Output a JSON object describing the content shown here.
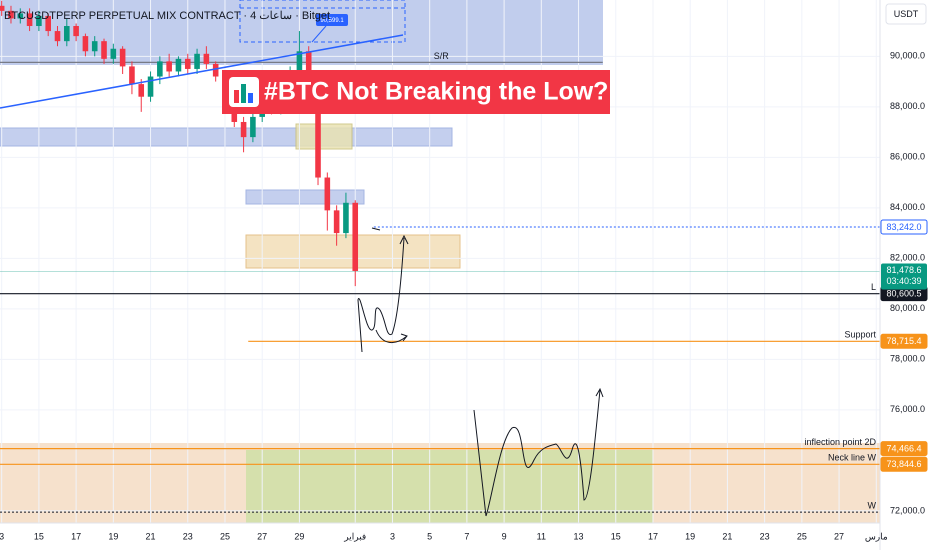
{
  "chart_data": {
    "type": "candlestick",
    "title": "#BTC Not Breaking the Low?",
    "symbol": "BTCUSDTPERP PERPETUAL MIX CONTRACT · 4 ساعات · Bitget",
    "currency": "USDT",
    "target_callout": "90,599.1",
    "up_color": "#089981",
    "down_color": "#f23645",
    "x": [
      -4,
      -3.5,
      -3,
      -2.5,
      -2,
      -1.5,
      -1,
      -0.5,
      0,
      0.5,
      1,
      1.5,
      2,
      2.5,
      3,
      3.5,
      4,
      4.5,
      5,
      5.5,
      6,
      6.5,
      7,
      7.5,
      8,
      8.5,
      9,
      9.5,
      10,
      10.5,
      11,
      11.5,
      12,
      12.5,
      13,
      13.5,
      14,
      14.5,
      15
    ],
    "open": [
      92000,
      91800,
      91500,
      91700,
      91200,
      91600,
      91000,
      90600,
      91200,
      90800,
      90200,
      90600,
      89900,
      90300,
      89600,
      88900,
      88400,
      89200,
      89800,
      89400,
      89900,
      89500,
      90100,
      89700,
      89200,
      88600,
      87400,
      86800,
      87600,
      88200,
      87900,
      88700,
      89300,
      90200,
      88000,
      85200,
      83900,
      83000,
      84200
    ],
    "high": [
      92200,
      92000,
      91900,
      91900,
      91800,
      91700,
      91200,
      91500,
      91300,
      90900,
      90800,
      90700,
      90500,
      90400,
      89800,
      89100,
      89400,
      90000,
      90100,
      90000,
      90100,
      90300,
      90400,
      89800,
      89400,
      88700,
      87600,
      87800,
      88400,
      88500,
      88900,
      89600,
      91000,
      90400,
      88100,
      85400,
      84100,
      84600,
      84300
    ],
    "low": [
      91600,
      91300,
      91300,
      91000,
      91000,
      90800,
      90400,
      90400,
      90600,
      90000,
      90000,
      89700,
      89700,
      89300,
      88500,
      87800,
      88200,
      88900,
      89200,
      89200,
      89300,
      89300,
      89500,
      89000,
      88400,
      87200,
      86200,
      86600,
      87400,
      87700,
      87700,
      88500,
      89100,
      87800,
      84900,
      83100,
      82500,
      82800,
      80900
    ],
    "close": [
      91800,
      91500,
      91700,
      91200,
      91600,
      91000,
      90600,
      91200,
      90800,
      90200,
      90600,
      89900,
      90300,
      89600,
      88900,
      88400,
      89200,
      89800,
      89400,
      89900,
      89500,
      90100,
      89700,
      89200,
      88600,
      87400,
      86800,
      87600,
      88200,
      87900,
      88700,
      89300,
      90200,
      88000,
      85200,
      83900,
      83000,
      84200,
      81500
    ],
    "xlim": [
      -4.09,
      43.2
    ],
    "xticks": [
      {
        "value": -4,
        "label": "3"
      },
      {
        "value": -2,
        "label": "15"
      },
      {
        "value": 0,
        "label": "17"
      },
      {
        "value": 2,
        "label": "19"
      },
      {
        "value": 4,
        "label": "21"
      },
      {
        "value": 6,
        "label": "23"
      },
      {
        "value": 8,
        "label": "25"
      },
      {
        "value": 10,
        "label": "27"
      },
      {
        "value": 12,
        "label": "29"
      },
      {
        "value": 15,
        "label": "فبراير"
      },
      {
        "value": 17,
        "label": "3"
      },
      {
        "value": 19,
        "label": "5"
      },
      {
        "value": 21,
        "label": "7"
      },
      {
        "value": 23,
        "label": "9"
      },
      {
        "value": 25,
        "label": "11"
      },
      {
        "value": 27,
        "label": "13"
      },
      {
        "value": 29,
        "label": "15"
      },
      {
        "value": 31,
        "label": "17"
      },
      {
        "value": 33,
        "label": "19"
      },
      {
        "value": 35,
        "label": "21"
      },
      {
        "value": 37,
        "label": "23"
      },
      {
        "value": 39,
        "label": "25"
      },
      {
        "value": 41,
        "label": "27"
      },
      {
        "value": 43,
        "label": "مارس"
      }
    ],
    "ylim": [
      71520,
      92230
    ],
    "yticks": [
      {
        "value": 72000,
        "label": "72,000.0"
      },
      {
        "value": 76000,
        "label": "76,000.0"
      },
      {
        "value": 78000,
        "label": "78,000.0"
      },
      {
        "value": 80000,
        "label": "80,000.0"
      },
      {
        "value": 82000,
        "label": "82,000.0"
      },
      {
        "value": 84000,
        "label": "84,000.0"
      },
      {
        "value": 86000,
        "label": "86,000.0"
      },
      {
        "value": 88000,
        "label": "88,000.0"
      },
      {
        "value": 90000,
        "label": "90,000.0"
      }
    ],
    "current": {
      "value": 81478.6,
      "label": "81,478.6",
      "countdown": "03:40:39",
      "color": "#089981"
    },
    "levels": [
      {
        "name": "Support",
        "value": 78715.4,
        "label": "78,715.4",
        "color": "#f7931a",
        "from": 9.25
      },
      {
        "name": "inflection point 2D",
        "value": 74466.4,
        "label": "74,466.4",
        "color": "#f7931a"
      },
      {
        "name": "Neck line W",
        "value": 73844.6,
        "label": "73,844.6",
        "color": "#f7931a"
      },
      {
        "name": "L",
        "value": 80600.5,
        "label": "80,600.5",
        "color": "#131722"
      },
      {
        "value": 83242.0,
        "label": "83,242.0",
        "color": "#2962ff",
        "dashed": true,
        "from": 16
      },
      {
        "name": "W",
        "value": 71950,
        "color": "#131722",
        "dashed": true
      },
      {
        "name": "S/R",
        "value": 89760,
        "color": "#787b86",
        "to": 28.3
      }
    ]
  }
}
